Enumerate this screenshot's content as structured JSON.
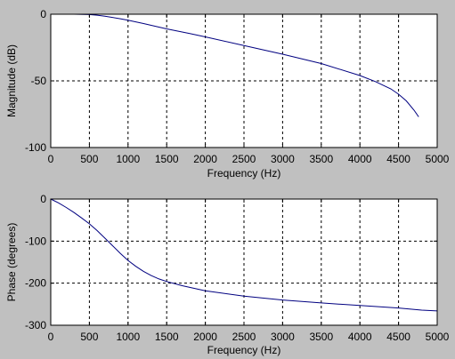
{
  "chart_data": [
    {
      "type": "line",
      "xlabel": "Frequency (Hz)",
      "ylabel": "Magnitude (dB)",
      "xlim": [
        0,
        5000
      ],
      "ylim": [
        -100,
        0
      ],
      "xticks": [
        "0",
        "500",
        "1000",
        "1500",
        "2000",
        "2500",
        "3000",
        "3500",
        "4000",
        "4500",
        "5000"
      ],
      "yticks": [
        "0",
        "-50",
        "-100"
      ],
      "grid": true,
      "line_color": "#000080",
      "series": [
        {
          "x": [
            0,
            300,
            500,
            600,
            700,
            800,
            900,
            1000,
            1200,
            1400,
            1500,
            1800,
            2000,
            2500,
            3000,
            3500,
            4000,
            4200,
            4400,
            4500,
            4600,
            4700,
            4760
          ],
          "values": [
            0,
            0,
            -0.3,
            -0.7,
            -1.5,
            -2.4,
            -3.4,
            -4.5,
            -7.0,
            -9.7,
            -11,
            -14.5,
            -17,
            -23.5,
            -30,
            -37,
            -46,
            -50.5,
            -56,
            -60,
            -65,
            -72,
            -77
          ]
        }
      ]
    },
    {
      "type": "line",
      "xlabel": "Frequency (Hz)",
      "ylabel": "Phase (degrees)",
      "xlim": [
        0,
        5000
      ],
      "ylim": [
        -300,
        0
      ],
      "xticks": [
        "0",
        "500",
        "1000",
        "1500",
        "2000",
        "2500",
        "3000",
        "3500",
        "4000",
        "4500",
        "5000"
      ],
      "yticks": [
        "0",
        "-100",
        "-200",
        "-300"
      ],
      "grid": true,
      "line_color": "#000080",
      "series": [
        {
          "x": [
            0,
            100,
            200,
            300,
            400,
            500,
            600,
            700,
            800,
            900,
            1000,
            1100,
            1200,
            1300,
            1400,
            1500,
            1700,
            2000,
            2500,
            3000,
            3500,
            4000,
            4500,
            4800,
            5000
          ],
          "values": [
            0,
            -9,
            -20,
            -32,
            -45,
            -59,
            -75,
            -93,
            -111,
            -129,
            -146,
            -160,
            -172,
            -182,
            -190,
            -196,
            -206,
            -218,
            -231,
            -240,
            -247,
            -253,
            -259,
            -264,
            -266
          ]
        }
      ]
    }
  ]
}
